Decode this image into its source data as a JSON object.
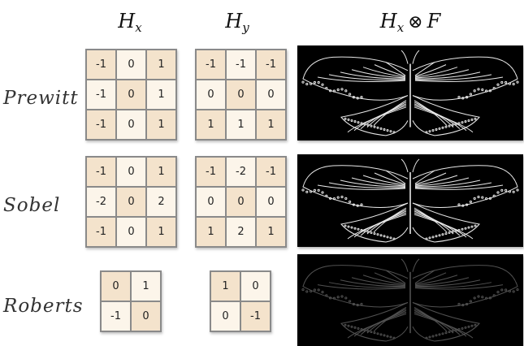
{
  "headers": {
    "hx": {
      "base": "H",
      "sub": "x"
    },
    "hy": {
      "base": "H",
      "sub": "y"
    },
    "result": {
      "base": "H",
      "sub": "x",
      "op": "⊗",
      "operand": "F"
    }
  },
  "colors": {
    "cell_dark": "#f4e3cc",
    "cell_light": "#fcf5ea",
    "image_bg": "#000000",
    "edge": "#e8e8e8"
  },
  "rows": [
    {
      "label": "Prewitt",
      "hx": [
        [
          "-1",
          "0",
          "1"
        ],
        [
          "-1",
          "0",
          "1"
        ],
        [
          "-1",
          "0",
          "1"
        ]
      ],
      "hy": [
        [
          "-1",
          "-1",
          "-1"
        ],
        [
          "0",
          "0",
          "0"
        ],
        [
          "1",
          "1",
          "1"
        ]
      ],
      "edge_strength": 1.0
    },
    {
      "label": "Sobel",
      "hx": [
        [
          "-1",
          "0",
          "1"
        ],
        [
          "-2",
          "0",
          "2"
        ],
        [
          "-1",
          "0",
          "1"
        ]
      ],
      "hy": [
        [
          "-1",
          "-2",
          "-1"
        ],
        [
          "0",
          "0",
          "0"
        ],
        [
          "1",
          "2",
          "1"
        ]
      ],
      "edge_strength": 1.0
    },
    {
      "label": "Roberts",
      "hx": [
        [
          "0",
          "1"
        ],
        [
          "-1",
          "0"
        ]
      ],
      "hy": [
        [
          "1",
          "0"
        ],
        [
          "0",
          "-1"
        ]
      ],
      "edge_strength": 0.35
    }
  ]
}
